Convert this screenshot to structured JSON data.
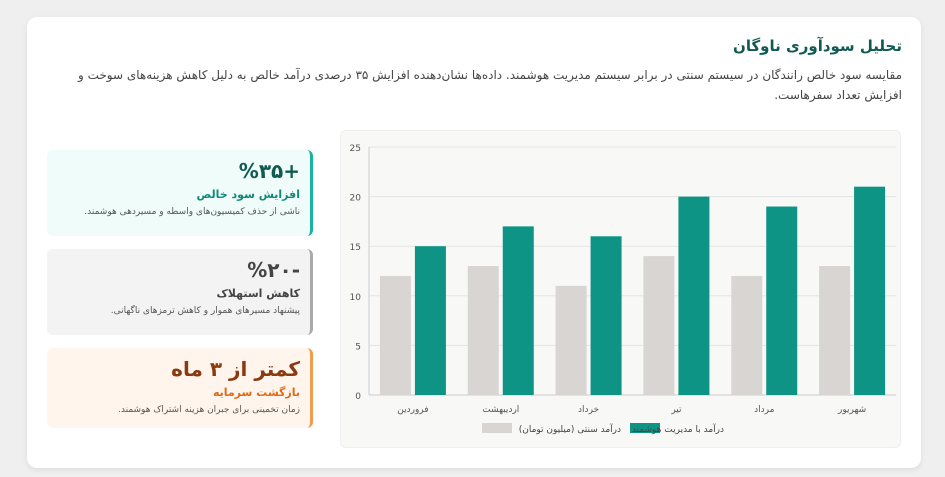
{
  "header": {
    "title": "تحلیل سودآوری ناوگان",
    "description": "مقایسه سود خالص رانندگان در سیستم سنتی در برابر سیستم مدیریت هوشمند. داده‌ها نشان‌دهنده افزایش ۳۵ درصدی درآمد خالص به دلیل کاهش هزینه‌های سوخت و افزایش تعداد سفرهاست."
  },
  "stats": [
    {
      "value": "+%۳۵",
      "label": "افزایش سود خالص",
      "note": "ناشی از حذف کمیسیون‌های واسطه و مسیردهی هوشمند."
    },
    {
      "value": "-%۲۰",
      "label": "کاهش استهلاک",
      "note": "پیشنهاد مسیرهای هموار و کاهش ترمزهای ناگهانی."
    },
    {
      "value": "کمتر از ۳ ماه",
      "label": "بازگشت سرمایه",
      "note": "زمان تخمینی برای جبران هزینه اشتراک هوشمند."
    }
  ],
  "colors": {
    "traditional": "#d9d5d2",
    "smart": "#0e9484"
  },
  "chart_data": {
    "type": "bar",
    "categories": [
      "فروردین",
      "اردیبهشت",
      "خرداد",
      "تیر",
      "مرداد",
      "شهریور"
    ],
    "series": [
      {
        "name": "درآمد سنتی (میلیون تومان)",
        "values": [
          12,
          13,
          11,
          14,
          12,
          13
        ]
      },
      {
        "name": "درآمد با مدیریت هوشمند",
        "values": [
          15,
          17,
          16,
          20,
          19,
          21
        ]
      }
    ],
    "ylim": [
      0,
      25
    ],
    "yticks": [
      "0",
      "5",
      "10",
      "15",
      "20",
      "25"
    ],
    "grid": true,
    "legend": "bottom"
  }
}
